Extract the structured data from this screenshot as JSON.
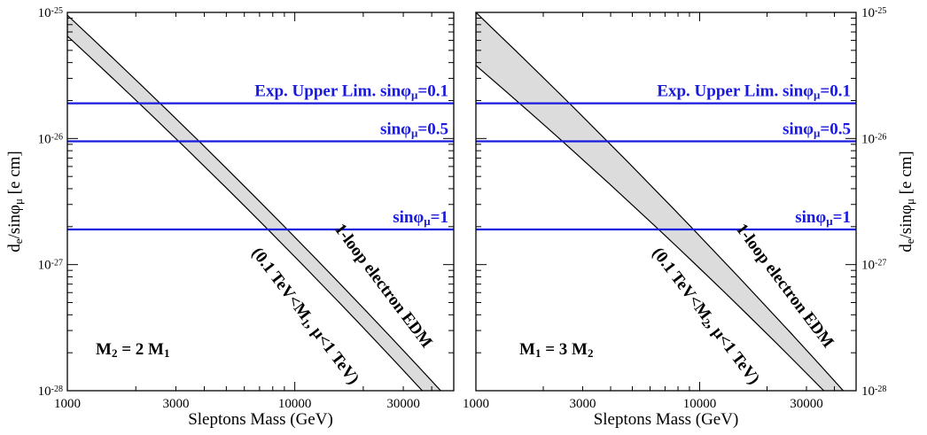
{
  "chart_data": [
    {
      "type": "line",
      "panel": "left",
      "xlabel": "Sleptons Mass (GeV)",
      "ylabel": "d_e/sinφ_μ  [e cm]",
      "y_axis_side": "left",
      "xscale": "log",
      "yscale": "log",
      "xlim": [
        1000,
        50000
      ],
      "ylim": [
        1e-28,
        1e-25
      ],
      "x_ticks": [
        {
          "value": 1000,
          "label": "1000"
        },
        {
          "value": 3000,
          "label": "3000"
        },
        {
          "value": 10000,
          "label": "10000"
        },
        {
          "value": 30000,
          "label": "30000"
        }
      ],
      "y_ticks": [
        {
          "value": 1e-28,
          "base": "10",
          "exp": "-28"
        },
        {
          "value": 1e-27,
          "base": "10",
          "exp": "-27"
        },
        {
          "value": 1e-26,
          "base": "10",
          "exp": "-26"
        },
        {
          "value": 1e-25,
          "base": "10",
          "exp": "-25"
        }
      ],
      "band": {
        "upper": {
          "x": [
            1000,
            44000
          ],
          "y": [
            9.5e-26,
            1e-28
          ]
        },
        "lower": {
          "x": [
            1000,
            36500
          ],
          "y": [
            6.5e-26,
            1e-28
          ]
        }
      },
      "hlines": [
        {
          "y": 1.9e-26,
          "text": "Exp. Upper Lim.  sinφ",
          "sub": "μ",
          "tail": "=0.1",
          "color": "#1a1adf"
        },
        {
          "y": 9.5e-27,
          "text": "sinφ",
          "sub": "μ",
          "tail": "=0.5",
          "color": "#1a1adf"
        },
        {
          "y": 1.9e-27,
          "text": "sinφ",
          "sub": "μ",
          "tail": "=1",
          "color": "#1a1adf"
        }
      ],
      "annotations": {
        "band_label": "1-loop electron EDM",
        "range_label": {
          "pre": "(0.1 TeV<M",
          "sub": "1",
          "post": ", μ<1 TeV)"
        },
        "ratio_label": {
          "a": "M",
          "a_sub": "2",
          "mid": " = 2 M",
          "b_sub": "1"
        }
      }
    },
    {
      "type": "line",
      "panel": "right",
      "xlabel": "Sleptons Mass (GeV)",
      "ylabel": "d_e/sinφ_μ  [e cm]",
      "y_axis_side": "right",
      "xscale": "log",
      "yscale": "log",
      "xlim": [
        1000,
        50000
      ],
      "ylim": [
        1e-28,
        1e-25
      ],
      "x_ticks": [
        {
          "value": 1000,
          "label": "1000"
        },
        {
          "value": 3000,
          "label": "3000"
        },
        {
          "value": 10000,
          "label": "10000"
        },
        {
          "value": 30000,
          "label": "30000"
        }
      ],
      "y_ticks": [
        {
          "value": 1e-28,
          "base": "10",
          "exp": "-28"
        },
        {
          "value": 1e-27,
          "base": "10",
          "exp": "-27"
        },
        {
          "value": 1e-26,
          "base": "10",
          "exp": "-26"
        },
        {
          "value": 1e-25,
          "base": "10",
          "exp": "-25"
        }
      ],
      "band": {
        "upper": {
          "x": [
            1000,
            44000
          ],
          "y": [
            1e-25,
            1e-28
          ]
        },
        "lower": {
          "x": [
            1000,
            36000
          ],
          "y": [
            3.8e-26,
            1e-28
          ]
        }
      },
      "hlines": [
        {
          "y": 1.9e-26,
          "text": "Exp. Upper Lim.  sinφ",
          "sub": "μ",
          "tail": "=0.1",
          "color": "#1a1adf"
        },
        {
          "y": 9.5e-27,
          "text": "sinφ",
          "sub": "μ",
          "tail": "=0.5",
          "color": "#1a1adf"
        },
        {
          "y": 1.9e-27,
          "text": "sinφ",
          "sub": "μ",
          "tail": "=1",
          "color": "#1a1adf"
        }
      ],
      "annotations": {
        "band_label": "1-loop electron EDM",
        "range_label": {
          "pre": "(0.1 TeV<M",
          "sub": "2",
          "post": ", μ<1 TeV)"
        },
        "ratio_label": {
          "a": "M",
          "a_sub": "1",
          "mid": " = 3 M",
          "b_sub": "2"
        }
      }
    }
  ],
  "colors": {
    "band_fill": "#dcdcdc",
    "band_edge": "#000000",
    "limit_line": "#1a1adf"
  }
}
